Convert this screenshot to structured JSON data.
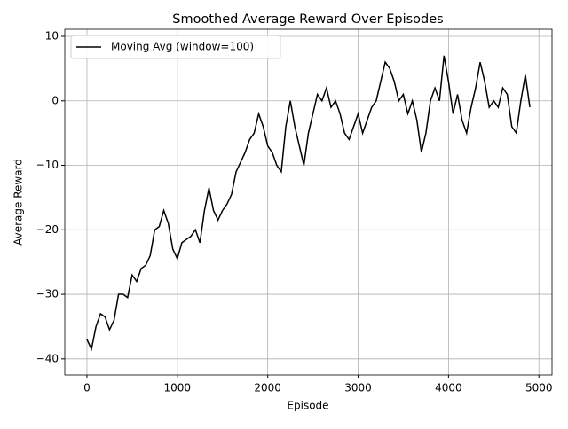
{
  "chart_data": {
    "type": "line",
    "title": "Smoothed Average Reward Over Episodes",
    "xlabel": "Episode",
    "ylabel": "Average Reward",
    "x": [
      0,
      50,
      100,
      150,
      200,
      250,
      300,
      350,
      400,
      450,
      500,
      550,
      600,
      650,
      700,
      750,
      800,
      850,
      900,
      950,
      1000,
      1050,
      1100,
      1150,
      1200,
      1250,
      1300,
      1350,
      1400,
      1450,
      1500,
      1550,
      1600,
      1650,
      1700,
      1750,
      1800,
      1850,
      1900,
      1950,
      2000,
      2050,
      2100,
      2150,
      2200,
      2250,
      2300,
      2350,
      2400,
      2450,
      2500,
      2550,
      2600,
      2650,
      2700,
      2750,
      2800,
      2850,
      2900,
      2950,
      3000,
      3050,
      3100,
      3150,
      3200,
      3250,
      3300,
      3350,
      3400,
      3450,
      3500,
      3550,
      3600,
      3650,
      3700,
      3750,
      3800,
      3850,
      3900,
      3950,
      4000,
      4050,
      4100,
      4150,
      4200,
      4250,
      4300,
      4350,
      4400,
      4450,
      4500,
      4550,
      4600,
      4650,
      4700,
      4750,
      4800,
      4850,
      4900
    ],
    "series": [
      {
        "name": "Moving Avg (window=100)",
        "color": "#000000",
        "values": [
          -37,
          -38.5,
          -35,
          -33,
          -33.5,
          -35.5,
          -34,
          -30,
          -30,
          -30.5,
          -27,
          -28,
          -26,
          -25.5,
          -24,
          -20,
          -19.5,
          -17,
          -19,
          -23,
          -24.5,
          -22,
          -21.5,
          -21,
          -20,
          -22,
          -17,
          -13.5,
          -17,
          -18.5,
          -17,
          -16,
          -14.5,
          -11,
          -9.5,
          -8,
          -6,
          -5,
          -2,
          -4,
          -7,
          -8,
          -10,
          -11,
          -4,
          0,
          -4,
          -7,
          -10,
          -5,
          -2,
          1,
          0,
          2,
          -1,
          0,
          -2,
          -5,
          -6,
          -4,
          -2,
          -5,
          -3,
          -1,
          0,
          3,
          6,
          5,
          3,
          0,
          1,
          -2,
          0,
          -3,
          -8,
          -5,
          0,
          2,
          0,
          7,
          3,
          -2,
          1,
          -3,
          -5,
          -1,
          2,
          6,
          3,
          -1,
          0,
          -1,
          2,
          1,
          -4,
          -5,
          0,
          4,
          -1
        ]
      }
    ],
    "xlim": [
      -245,
      5145
    ],
    "ylim": [
      -42.5,
      11.1
    ],
    "xticks": [
      0,
      1000,
      2000,
      3000,
      4000,
      5000
    ],
    "yticks": [
      {
        "value": -40,
        "label": "−40"
      },
      {
        "value": -30,
        "label": "−30"
      },
      {
        "value": -20,
        "label": "−20"
      },
      {
        "value": -10,
        "label": "−10"
      },
      0,
      10
    ],
    "grid": true,
    "legend": "upper left"
  }
}
